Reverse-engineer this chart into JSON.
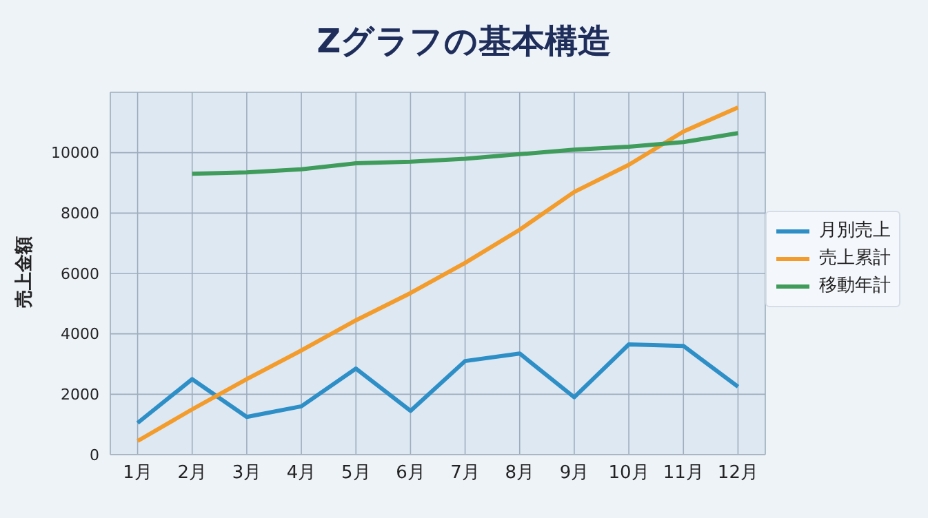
{
  "chart_data": {
    "type": "line",
    "title": "Zグラフの基本構造",
    "ylabel": "売上金額",
    "categories": [
      "1月",
      "2月",
      "3月",
      "4月",
      "5月",
      "6月",
      "7月",
      "8月",
      "9月",
      "10月",
      "11月",
      "12月"
    ],
    "series": [
      {
        "name": "月別売上",
        "color": "#2e8fc7",
        "values": [
          1050,
          2500,
          1250,
          1600,
          2850,
          1450,
          3100,
          3350,
          1900,
          3650,
          3600,
          2250
        ]
      },
      {
        "name": "売上累計",
        "color": "#f39c2b",
        "values": [
          450,
          1500,
          2500,
          3450,
          4450,
          5350,
          6350,
          7450,
          8700,
          9600,
          10700,
          11500
        ]
      },
      {
        "name": "移動年計",
        "color": "#3f9c5a",
        "values": [
          null,
          9300,
          9350,
          9450,
          9650,
          9700,
          9800,
          9950,
          10100,
          10200,
          10350,
          10650
        ]
      }
    ],
    "ylim": [
      0,
      12000
    ],
    "yticks": [
      0,
      2000,
      4000,
      6000,
      8000,
      10000
    ],
    "grid": true,
    "legend": "right",
    "marker": "none",
    "line_style": "solid"
  }
}
